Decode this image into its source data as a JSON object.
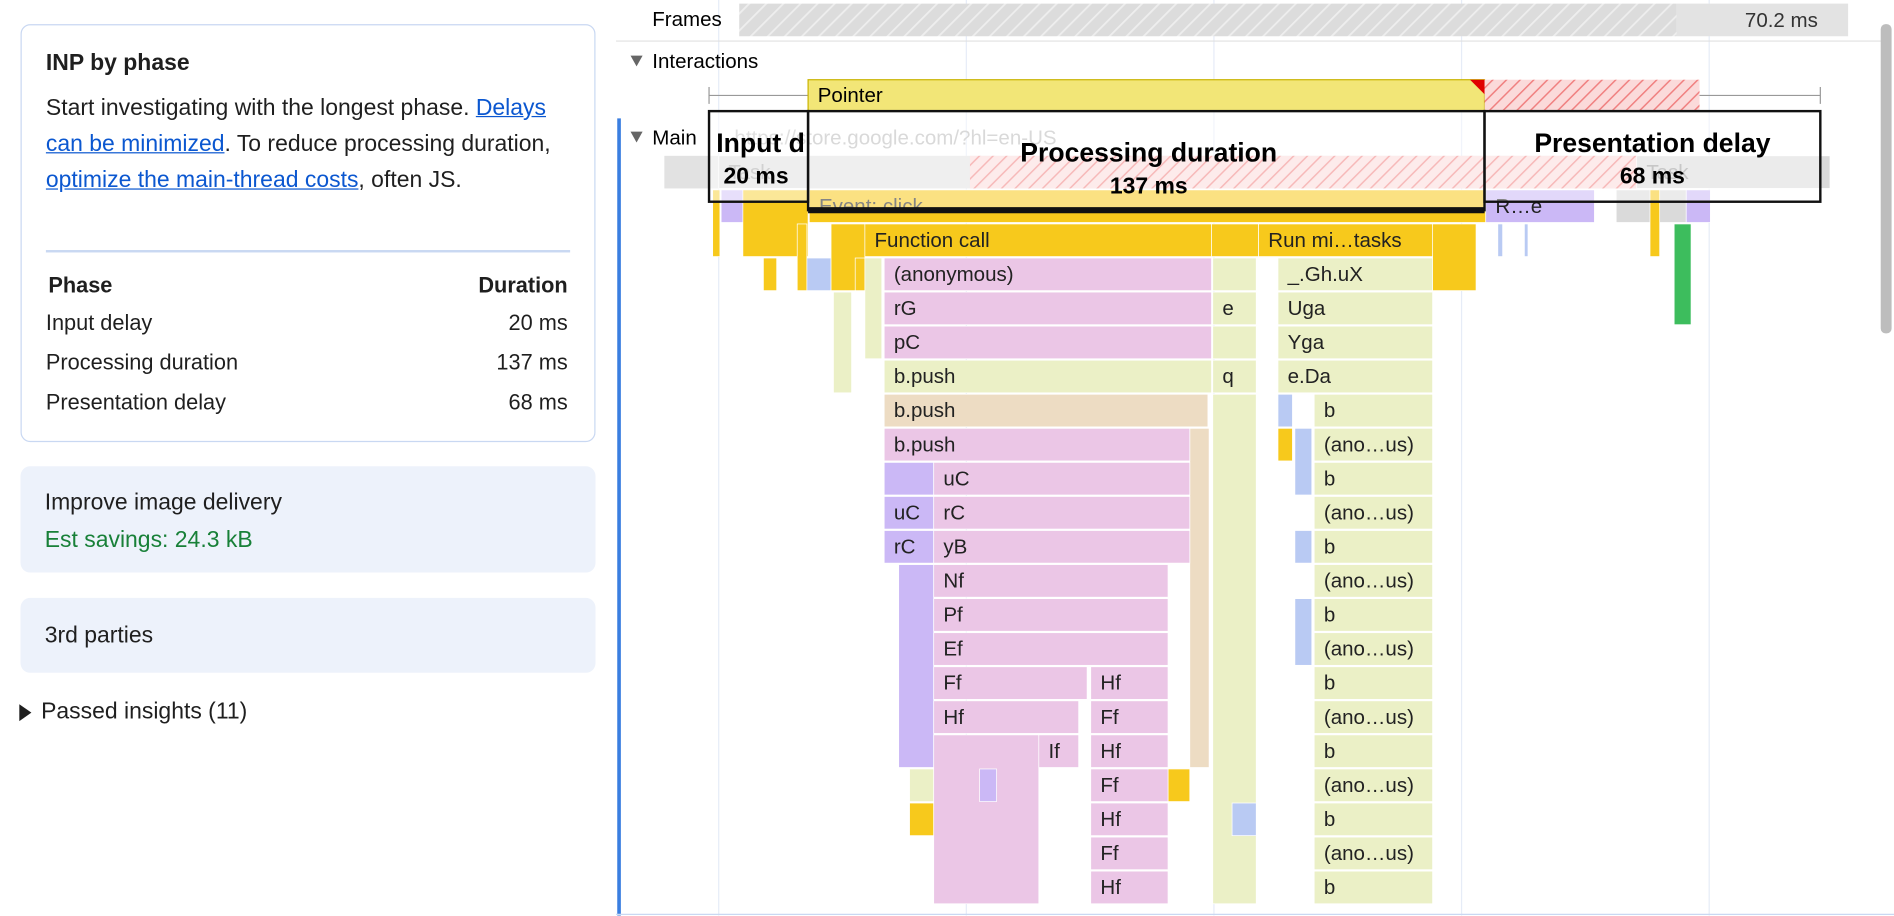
{
  "sidebar": {
    "inp": {
      "title": "INP by phase",
      "intro": "Start investigating with the longest phase.",
      "link1": "Delays can be minimized",
      "mid": ". To reduce processing duration, ",
      "link2": "optimize the main-thread costs",
      "end": ", often JS.",
      "columns": [
        "Phase",
        "Duration"
      ],
      "rows": [
        [
          "Input delay",
          "20 ms"
        ],
        [
          "Processing duration",
          "137 ms"
        ],
        [
          "Presentation delay",
          "68 ms"
        ]
      ]
    },
    "image_delivery": {
      "title": "Improve image delivery",
      "savings": "Est savings: 24.3 kB"
    },
    "third_parties": {
      "title": "3rd parties"
    },
    "passed": {
      "title": "Passed insights (11)"
    }
  },
  "timeline": {
    "frames": {
      "label": "Frames",
      "duration": "70.2 ms"
    },
    "interactions": {
      "label": "Interactions",
      "pointer": "Pointer"
    },
    "main": {
      "label": "Main",
      "url": "https://store.google.com/?hl=en-US"
    },
    "phases": [
      {
        "name": "Input d",
        "duration": "20 ms"
      },
      {
        "name": "Processing duration",
        "duration": "137 ms"
      },
      {
        "name": "Presentation delay",
        "duration": "68 ms"
      }
    ],
    "flame": [
      "Task",
      "Task",
      "Event: click",
      "R…e",
      "Function call",
      "Run mi…tasks",
      "(anonymous)",
      "_.Gh.uX",
      "rG",
      "e",
      "Uga",
      "pC",
      "Yga",
      "b.push",
      "q",
      "e.Da",
      "b.push",
      "b",
      "b.push",
      "(ano…us)",
      "uC",
      "b",
      "uC",
      "rC",
      "(ano…us)",
      "rC",
      "yB",
      "b",
      "Nf",
      "(ano…us)",
      "Pf",
      "b",
      "Ef",
      "(ano…us)",
      "Ff",
      "Hf",
      "b",
      "Hf",
      "Ff",
      "(ano…us)",
      "If",
      "Hf",
      "b",
      "Ff",
      "(ano…us)",
      "Hf",
      "b",
      "Ff",
      "(ano…us)",
      "Hf",
      "b"
    ]
  }
}
